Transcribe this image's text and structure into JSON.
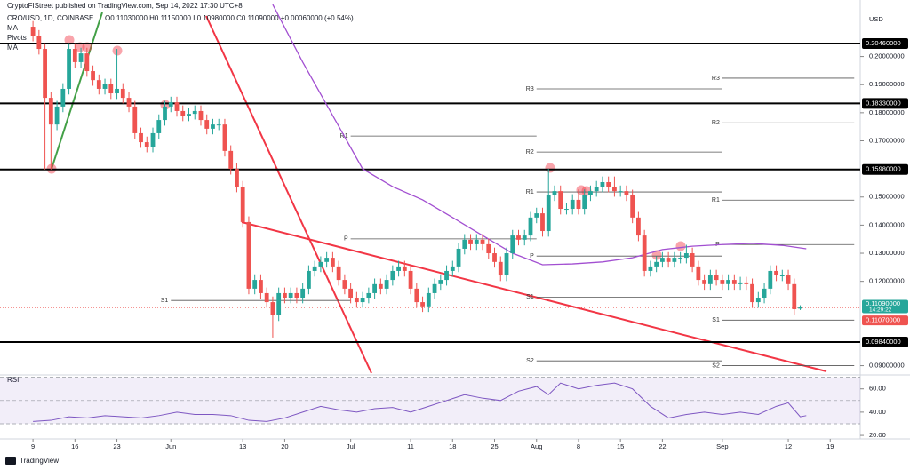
{
  "chart_data": {
    "type": "candlestick",
    "header": "CryptoFIStreet published on TradingView.com, Sep 14, 2022 17:30 UTC+8",
    "title": "CRO/USD, 1D, COINBASE",
    "ohlc_legend": "O0.11030000 H0.11150000 L0.10980000 C0.11090000 +0.00060000 (+0.54%)",
    "indicators": [
      "MA",
      "Pivots",
      "MA"
    ],
    "currency": "USD",
    "brand": "TradingView",
    "up_color": "#26a69a",
    "down_color": "#ef5350",
    "open": [
      0.2106,
      0.2074,
      0.2027,
      0.1853,
      0.1758,
      0.1822,
      0.1885,
      0.2027,
      0.198,
      0.2011,
      0.1948,
      0.1916,
      0.1885,
      0.1901,
      0.1869,
      0.1885,
      0.1853,
      0.1822,
      0.1727,
      0.1695,
      0.1679,
      0.1727,
      0.1774,
      0.1822,
      0.1837,
      0.1806,
      0.179,
      0.1796,
      0.1806,
      0.1774,
      0.1743,
      0.1758,
      0.1758,
      0.1664,
      0.16,
      0.1537,
      0.1411,
      0.1174,
      0.1205,
      0.1158,
      0.1126,
      0.1079,
      0.1158,
      0.1142,
      0.1158,
      0.1142,
      0.1174,
      0.1237,
      0.1253,
      0.1269,
      0.1284,
      0.1253,
      0.1205,
      0.1174,
      0.1142,
      0.1126,
      0.1142,
      0.1158,
      0.119,
      0.1174,
      0.1205,
      0.1237,
      0.1253,
      0.1237,
      0.1174,
      0.1126,
      0.1111,
      0.1158,
      0.119,
      0.1205,
      0.1237,
      0.1253,
      0.1316,
      0.1348,
      0.1332,
      0.1348,
      0.1332,
      0.13,
      0.1269,
      0.1221,
      0.13,
      0.1363,
      0.1348,
      0.1363,
      0.1427,
      0.1442,
      0.1379,
      0.1506,
      0.1521,
      0.1458,
      0.1458,
      0.149,
      0.1458,
      0.1506,
      0.1521,
      0.1537,
      0.1553,
      0.1537,
      0.1521,
      0.1521,
      0.1506,
      0.1427,
      0.1363,
      0.1237,
      0.1253,
      0.1269,
      0.1284,
      0.1269,
      0.1284,
      0.1284,
      0.13,
      0.1253,
      0.1205,
      0.119,
      0.1221,
      0.1205,
      0.119,
      0.1205,
      0.119,
      0.1196,
      0.119,
      0.1126,
      0.1142,
      0.1174,
      0.1237,
      0.1221,
      0.1221,
      0.119,
      0.1103
    ],
    "high": [
      0.2126,
      0.2094,
      0.2047,
      0.1873,
      0.1842,
      0.1905,
      0.2047,
      0.2047,
      0.2031,
      0.2031,
      0.1968,
      0.1936,
      0.1921,
      0.1921,
      0.2027,
      0.1905,
      0.1873,
      0.1842,
      0.1747,
      0.1715,
      0.1747,
      0.1794,
      0.1842,
      0.1857,
      0.1857,
      0.1826,
      0.1816,
      0.1826,
      0.1826,
      0.1794,
      0.1778,
      0.1778,
      0.1778,
      0.1684,
      0.162,
      0.1557,
      0.1431,
      0.1225,
      0.1225,
      0.1178,
      0.1146,
      0.1178,
      0.1178,
      0.1178,
      0.1178,
      0.1194,
      0.1257,
      0.1273,
      0.1289,
      0.1304,
      0.1304,
      0.1273,
      0.1225,
      0.1194,
      0.1162,
      0.1162,
      0.1178,
      0.121,
      0.121,
      0.1225,
      0.1257,
      0.1273,
      0.1273,
      0.1257,
      0.1194,
      0.1146,
      0.1178,
      0.121,
      0.1225,
      0.1257,
      0.1273,
      0.1336,
      0.1368,
      0.1368,
      0.1368,
      0.1368,
      0.1352,
      0.132,
      0.1289,
      0.132,
      0.1383,
      0.1383,
      0.1383,
      0.1447,
      0.1462,
      0.1462,
      0.16,
      0.1541,
      0.1541,
      0.1478,
      0.151,
      0.1527,
      0.1527,
      0.1541,
      0.1557,
      0.1573,
      0.1573,
      0.1573,
      0.1541,
      0.1541,
      0.1526,
      0.1447,
      0.1383,
      0.1273,
      0.1289,
      0.1304,
      0.1304,
      0.1304,
      0.1304,
      0.133,
      0.132,
      0.1273,
      0.1225,
      0.1241,
      0.1241,
      0.1225,
      0.1225,
      0.1225,
      0.1216,
      0.1216,
      0.121,
      0.1162,
      0.1194,
      0.1257,
      0.1257,
      0.1241,
      0.1241,
      0.121,
      0.1115
    ],
    "low": [
      0.2054,
      0.2007,
      0.1598,
      0.1598,
      0.1738,
      0.1802,
      0.1865,
      0.196,
      0.196,
      0.1928,
      0.1896,
      0.1865,
      0.1865,
      0.1849,
      0.1849,
      0.1833,
      0.1802,
      0.1707,
      0.1675,
      0.1659,
      0.1659,
      0.1707,
      0.1754,
      0.1802,
      0.1786,
      0.177,
      0.177,
      0.1776,
      0.1754,
      0.1723,
      0.1723,
      0.1738,
      0.1644,
      0.158,
      0.1517,
      0.1391,
      0.1154,
      0.1154,
      0.1138,
      0.1106,
      0.1,
      0.1059,
      0.1122,
      0.1122,
      0.1122,
      0.1122,
      0.1154,
      0.1217,
      0.1233,
      0.1249,
      0.1233,
      0.1185,
      0.1154,
      0.1122,
      0.1106,
      0.1106,
      0.1122,
      0.1138,
      0.1154,
      0.1154,
      0.1185,
      0.1217,
      0.1217,
      0.1154,
      0.1106,
      0.1091,
      0.1091,
      0.1138,
      0.117,
      0.1185,
      0.1217,
      0.1233,
      0.1296,
      0.1312,
      0.1312,
      0.1312,
      0.128,
      0.1249,
      0.1201,
      0.1201,
      0.128,
      0.1328,
      0.1328,
      0.1343,
      0.1407,
      0.1359,
      0.1359,
      0.1486,
      0.1438,
      0.1438,
      0.1438,
      0.1438,
      0.1438,
      0.1486,
      0.1501,
      0.1517,
      0.1517,
      0.1501,
      0.1501,
      0.1486,
      0.1407,
      0.1343,
      0.1217,
      0.1217,
      0.1233,
      0.1249,
      0.1249,
      0.1249,
      0.1264,
      0.1264,
      0.1233,
      0.1185,
      0.117,
      0.117,
      0.1185,
      0.117,
      0.117,
      0.117,
      0.117,
      0.117,
      0.1106,
      0.1106,
      0.1122,
      0.1154,
      0.1201,
      0.1201,
      0.117,
      0.1081,
      0.1098
    ],
    "close": [
      0.2074,
      0.2027,
      0.1853,
      0.1758,
      0.1822,
      0.1885,
      0.2027,
      0.198,
      0.2011,
      0.1948,
      0.1916,
      0.1885,
      0.1901,
      0.1869,
      0.1885,
      0.1853,
      0.1822,
      0.1727,
      0.1695,
      0.1679,
      0.1727,
      0.1774,
      0.1822,
      0.1837,
      0.1806,
      0.179,
      0.1796,
      0.1806,
      0.1774,
      0.1743,
      0.1758,
      0.1758,
      0.1664,
      0.16,
      0.1537,
      0.1411,
      0.1174,
      0.1205,
      0.1158,
      0.1126,
      0.1079,
      0.1158,
      0.1142,
      0.1158,
      0.1142,
      0.1174,
      0.1237,
      0.1253,
      0.1269,
      0.1284,
      0.1253,
      0.1205,
      0.1174,
      0.1142,
      0.1126,
      0.1142,
      0.1158,
      0.119,
      0.1174,
      0.1205,
      0.1237,
      0.1253,
      0.1237,
      0.1174,
      0.1126,
      0.1111,
      0.1158,
      0.119,
      0.1205,
      0.1237,
      0.1253,
      0.1316,
      0.1348,
      0.1332,
      0.1348,
      0.1332,
      0.13,
      0.1269,
      0.1221,
      0.13,
      0.1363,
      0.1348,
      0.1363,
      0.1427,
      0.1442,
      0.1379,
      0.1506,
      0.1521,
      0.1458,
      0.1458,
      0.149,
      0.1458,
      0.1506,
      0.1521,
      0.1537,
      0.1553,
      0.1537,
      0.1521,
      0.1521,
      0.1506,
      0.1427,
      0.1363,
      0.1237,
      0.1253,
      0.1269,
      0.1284,
      0.1269,
      0.1284,
      0.1284,
      0.13,
      0.1253,
      0.1205,
      0.119,
      0.1221,
      0.1205,
      0.119,
      0.1205,
      0.119,
      0.1196,
      0.119,
      0.1126,
      0.1142,
      0.1174,
      0.1237,
      0.1221,
      0.1221,
      0.119,
      0.1101,
      0.1109
    ],
    "xlim": [
      -5.5,
      138
    ],
    "xticks": [
      {
        "value": 0,
        "label": "9"
      },
      {
        "value": 7,
        "label": "16"
      },
      {
        "value": 14,
        "label": "23"
      },
      {
        "value": 23,
        "label": "Jun"
      },
      {
        "value": 35,
        "label": "13"
      },
      {
        "value": 42,
        "label": "20"
      },
      {
        "value": 53,
        "label": "Jul"
      },
      {
        "value": 63,
        "label": "11"
      },
      {
        "value": 70,
        "label": "18"
      },
      {
        "value": 77,
        "label": "25"
      },
      {
        "value": 84,
        "label": "Aug"
      },
      {
        "value": 91,
        "label": "8"
      },
      {
        "value": 98,
        "label": "15"
      },
      {
        "value": 105,
        "label": "22"
      },
      {
        "value": 115,
        "label": "Sep"
      },
      {
        "value": 126,
        "label": "12"
      },
      {
        "value": 133,
        "label": "19"
      }
    ],
    "ylim": [
      0.0867,
      0.2201
    ],
    "yticks": [
      {
        "value": 0.2,
        "label": "0.20000000"
      },
      {
        "value": 0.19,
        "label": "0.19000000"
      },
      {
        "value": 0.18,
        "label": "0.18000000"
      },
      {
        "value": 0.17,
        "label": "0.17000000"
      },
      {
        "value": 0.15,
        "label": "0.15000000"
      },
      {
        "value": 0.14,
        "label": "0.14000000"
      },
      {
        "value": 0.13,
        "label": "0.13000000"
      },
      {
        "value": 0.12,
        "label": "0.12000000"
      },
      {
        "value": 0.09,
        "label": "0.09000000"
      }
    ],
    "levels": [
      {
        "value": 0.2046,
        "label": "0.20460000"
      },
      {
        "value": 0.1833,
        "label": "0.18330000"
      },
      {
        "value": 0.1598,
        "label": "0.15980000"
      },
      {
        "value": 0.0984,
        "label": "0.09840000"
      }
    ],
    "last_price": {
      "value": 0.1109,
      "label": "0.11090000",
      "countdown": "14:29:22",
      "color": "#26a69a"
    },
    "prev_price": {
      "value": 0.1107,
      "label": "0.11070000",
      "color": "#ef5350"
    },
    "pivots": [
      {
        "from": 23,
        "to": 53,
        "levels": [
          {
            "name": "S1",
            "value": 0.1132
          }
        ]
      },
      {
        "from": 53,
        "to": 84,
        "levels": [
          {
            "name": "R1",
            "value": 0.1717
          },
          {
            "name": "P",
            "value": 0.1351
          }
        ]
      },
      {
        "from": 84,
        "to": 115,
        "levels": [
          {
            "name": "R3",
            "value": 0.1885
          },
          {
            "name": "R2",
            "value": 0.166
          },
          {
            "name": "R1",
            "value": 0.1518
          },
          {
            "name": "P",
            "value": 0.129
          },
          {
            "name": "S1",
            "value": 0.1144
          },
          {
            "name": "S2",
            "value": 0.0917
          }
        ]
      },
      {
        "from": 115,
        "to": 137,
        "levels": [
          {
            "name": "R3",
            "value": 0.1923
          },
          {
            "name": "R2",
            "value": 0.1764
          },
          {
            "name": "R1",
            "value": 0.1489
          },
          {
            "name": "P",
            "value": 0.1331
          },
          {
            "name": "S1",
            "value": 0.1062
          },
          {
            "name": "S2",
            "value": 0.09
          }
        ]
      }
    ],
    "ma": {
      "color": "#a24fd1",
      "x": [
        40,
        45,
        50,
        55,
        60,
        65,
        70,
        75,
        80,
        85,
        90,
        95,
        100,
        105,
        110,
        115,
        120,
        125,
        129
      ],
      "values": [
        0.2185,
        0.198,
        0.179,
        0.16,
        0.1537,
        0.149,
        0.1427,
        0.1363,
        0.13,
        0.1259,
        0.1262,
        0.1269,
        0.1284,
        0.1313,
        0.1325,
        0.1331,
        0.1335,
        0.1328,
        0.1316
      ]
    },
    "rsi": {
      "name": "RSI",
      "color": "#7e57c2",
      "ylim": [
        17,
        72
      ],
      "yticks": [
        {
          "value": 60,
          "label": "60.00"
        },
        {
          "value": 40,
          "label": "40.00"
        },
        {
          "value": 20,
          "label": "20.00"
        }
      ],
      "band": [
        30,
        70
      ],
      "mid": 50,
      "x": [
        0,
        3,
        6,
        9,
        12,
        15,
        18,
        21,
        24,
        27,
        30,
        33,
        36,
        39,
        42,
        45,
        48,
        51,
        54,
        57,
        60,
        63,
        66,
        69,
        72,
        75,
        78,
        81,
        84,
        86,
        88,
        91,
        94,
        97,
        100,
        103,
        106,
        109,
        112,
        115,
        118,
        121,
        124,
        126,
        128,
        129
      ],
      "values": [
        32,
        33,
        36,
        35,
        37,
        36,
        35,
        37,
        40,
        38,
        38,
        37,
        33,
        32,
        35,
        40,
        45,
        42,
        40,
        43,
        44,
        40,
        45,
        50,
        55,
        52,
        50,
        58,
        62,
        55,
        65,
        60,
        63,
        65,
        60,
        45,
        35,
        38,
        40,
        38,
        40,
        38,
        45,
        48,
        36,
        37
      ]
    }
  }
}
